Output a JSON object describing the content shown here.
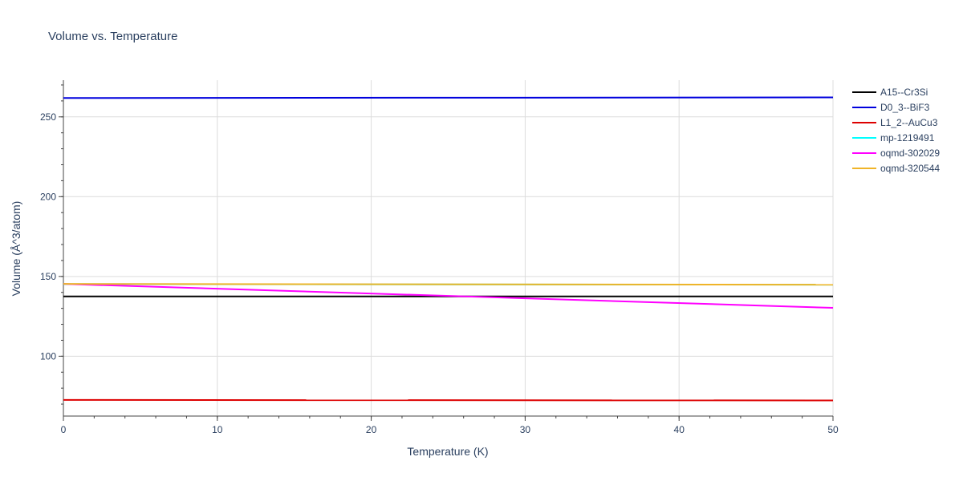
{
  "chart_data": {
    "type": "line",
    "title": "Volume vs. Temperature",
    "xlabel": "Temperature (K)",
    "ylabel": "Volume (Å^3/atom)",
    "xlim": [
      0,
      50
    ],
    "ylim": [
      62.5,
      273
    ],
    "xticks": [
      0,
      10,
      20,
      30,
      40,
      50
    ],
    "yticks": [
      100,
      150,
      200,
      250
    ],
    "grid": true,
    "legend_position": "right",
    "series": [
      {
        "name": "A15--Cr3Si",
        "color": "#000000",
        "x": [
          0,
          50
        ],
        "y": [
          137.5,
          137.5
        ]
      },
      {
        "name": "D0_3--BiF3",
        "color": "#0000dd",
        "x": [
          0,
          50
        ],
        "y": [
          261.8,
          262.2
        ]
      },
      {
        "name": "L1_2--AuCu3",
        "color": "#dd0000",
        "x": [
          0,
          50
        ],
        "y": [
          72.6,
          72.3
        ]
      },
      {
        "name": "mp-1219491",
        "color": "#00ffff",
        "x": [
          0,
          50
        ],
        "y": [
          145.2,
          144.8
        ]
      },
      {
        "name": "oqmd-302029",
        "color": "#ff00ff",
        "x": [
          0,
          50
        ],
        "y": [
          145.3,
          130.3
        ]
      },
      {
        "name": "oqmd-320544",
        "color": "#f0b428",
        "x": [
          0,
          50
        ],
        "y": [
          145.3,
          144.8
        ]
      }
    ]
  }
}
